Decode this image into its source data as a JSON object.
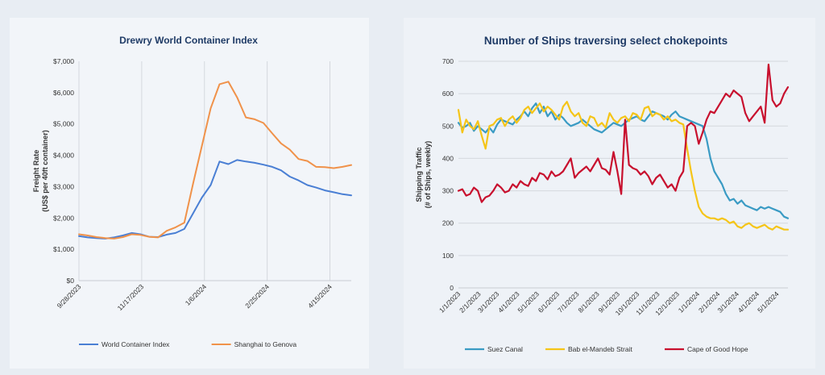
{
  "chart_data": [
    {
      "type": "line",
      "title": "Drewry World Container Index",
      "xlabel": "",
      "ylabel": [
        "Freight Rate",
        "(US$ per 40ft container)"
      ],
      "ylim": [
        0,
        7000
      ],
      "yticks": [
        "$0",
        "$1,000",
        "$2,000",
        "$3,000",
        "$4,000",
        "$5,000",
        "$6,000",
        "$7,000"
      ],
      "xticks": [
        "9/28/2023",
        "11/17/2023",
        "1/6/2024",
        "2/25/2024",
        "4/15/2024"
      ],
      "x": [
        "9/28/2023",
        "10/5/2023",
        "10/12/2023",
        "10/19/2023",
        "10/26/2023",
        "11/2/2023",
        "11/9/2023",
        "11/16/2023",
        "11/23/2023",
        "11/30/2023",
        "12/7/2023",
        "12/14/2023",
        "12/21/2023",
        "12/28/2023",
        "1/4/2024",
        "1/11/2024",
        "1/18/2024",
        "1/25/2024",
        "2/1/2024",
        "2/8/2024",
        "2/15/2024",
        "2/22/2024",
        "2/29/2024",
        "3/7/2024",
        "3/14/2024",
        "3/21/2024",
        "3/28/2024",
        "4/4/2024",
        "4/11/2024",
        "4/18/2024",
        "4/25/2024",
        "5/2/2024"
      ],
      "series": [
        {
          "name": "World Container Index",
          "color": "#4a7fd4",
          "values": [
            1420,
            1380,
            1360,
            1340,
            1380,
            1440,
            1520,
            1480,
            1400,
            1390,
            1470,
            1520,
            1650,
            2150,
            2650,
            3050,
            3800,
            3720,
            3850,
            3800,
            3760,
            3700,
            3630,
            3520,
            3320,
            3200,
            3050,
            2970,
            2880,
            2820,
            2760,
            2720
          ]
        },
        {
          "name": "Shanghai to Genova",
          "color": "#f0924a",
          "values": [
            1480,
            1440,
            1390,
            1360,
            1340,
            1390,
            1480,
            1460,
            1400,
            1380,
            1590,
            1700,
            1850,
            3100,
            4300,
            5500,
            6270,
            6350,
            5850,
            5210,
            5150,
            5030,
            4700,
            4380,
            4180,
            3880,
            3820,
            3630,
            3620,
            3590,
            3630,
            3690
          ]
        }
      ],
      "legend": "bottom",
      "grid": "vertical"
    },
    {
      "type": "line",
      "title": "Number of Ships traversing select chokepoints",
      "xlabel": "",
      "ylabel": [
        "Shipping Traffic",
        "(# of Ships, weekly)"
      ],
      "ylim": [
        0,
        700
      ],
      "yticks": [
        "0",
        "100",
        "200",
        "300",
        "400",
        "500",
        "600",
        "700"
      ],
      "xticks": [
        "1/1/2023",
        "2/1/2023",
        "3/1/2023",
        "4/1/2023",
        "5/1/2023",
        "6/1/2023",
        "7/1/2023",
        "8/1/2023",
        "9/1/2023",
        "10/1/2023",
        "11/1/2023",
        "12/1/2023",
        "1/1/2024",
        "2/1/2024",
        "3/1/2024",
        "4/1/2024",
        "5/1/2024"
      ],
      "x_start": "1/1/2023",
      "x_end": "5/18/2024",
      "series": [
        {
          "name": "Suez Canal",
          "color": "#3a9bc4",
          "values": [
            510,
            495,
            500,
            510,
            485,
            500,
            490,
            480,
            495,
            480,
            505,
            520,
            515,
            510,
            505,
            520,
            530,
            545,
            530,
            555,
            570,
            540,
            560,
            530,
            545,
            520,
            535,
            525,
            510,
            500,
            505,
            510,
            520,
            510,
            500,
            490,
            485,
            480,
            490,
            500,
            510,
            505,
            500,
            510,
            520,
            525,
            530,
            520,
            515,
            530,
            545,
            540,
            535,
            530,
            520,
            535,
            545,
            530,
            525,
            520,
            515,
            510,
            505,
            500,
            460,
            400,
            360,
            340,
            320,
            290,
            270,
            275,
            260,
            270,
            255,
            250,
            245,
            240,
            250,
            245,
            250,
            245,
            240,
            235,
            220,
            215
          ]
        },
        {
          "name": "Bab el-Mandeb Strait",
          "color": "#f5c518",
          "values": [
            550,
            480,
            520,
            500,
            490,
            515,
            470,
            430,
            500,
            505,
            520,
            525,
            500,
            520,
            530,
            510,
            525,
            550,
            560,
            540,
            555,
            570,
            545,
            560,
            550,
            535,
            520,
            560,
            575,
            545,
            530,
            540,
            510,
            500,
            530,
            525,
            500,
            510,
            495,
            540,
            520,
            510,
            525,
            530,
            515,
            540,
            535,
            520,
            555,
            560,
            530,
            540,
            535,
            520,
            530,
            515,
            520,
            510,
            505,
            430,
            360,
            300,
            250,
            230,
            220,
            215,
            215,
            210,
            215,
            210,
            200,
            205,
            190,
            185,
            195,
            200,
            190,
            185,
            190,
            195,
            185,
            180,
            190,
            185,
            180,
            180
          ]
        },
        {
          "name": "Cape of Good Hope",
          "color": "#c8102e",
          "values": [
            300,
            305,
            285,
            290,
            310,
            300,
            265,
            280,
            285,
            300,
            320,
            310,
            295,
            300,
            320,
            310,
            330,
            320,
            315,
            340,
            330,
            355,
            350,
            335,
            360,
            345,
            350,
            360,
            380,
            400,
            340,
            355,
            365,
            375,
            360,
            380,
            400,
            370,
            365,
            350,
            420,
            360,
            290,
            520,
            380,
            370,
            365,
            350,
            360,
            345,
            320,
            340,
            350,
            330,
            310,
            320,
            300,
            340,
            360,
            500,
            510,
            500,
            445,
            480,
            520,
            545,
            540,
            560,
            580,
            600,
            590,
            610,
            600,
            590,
            540,
            515,
            530,
            545,
            560,
            510,
            690,
            580,
            560,
            570,
            600,
            620
          ]
        }
      ],
      "legend": "bottom",
      "grid": "horizontal"
    }
  ]
}
